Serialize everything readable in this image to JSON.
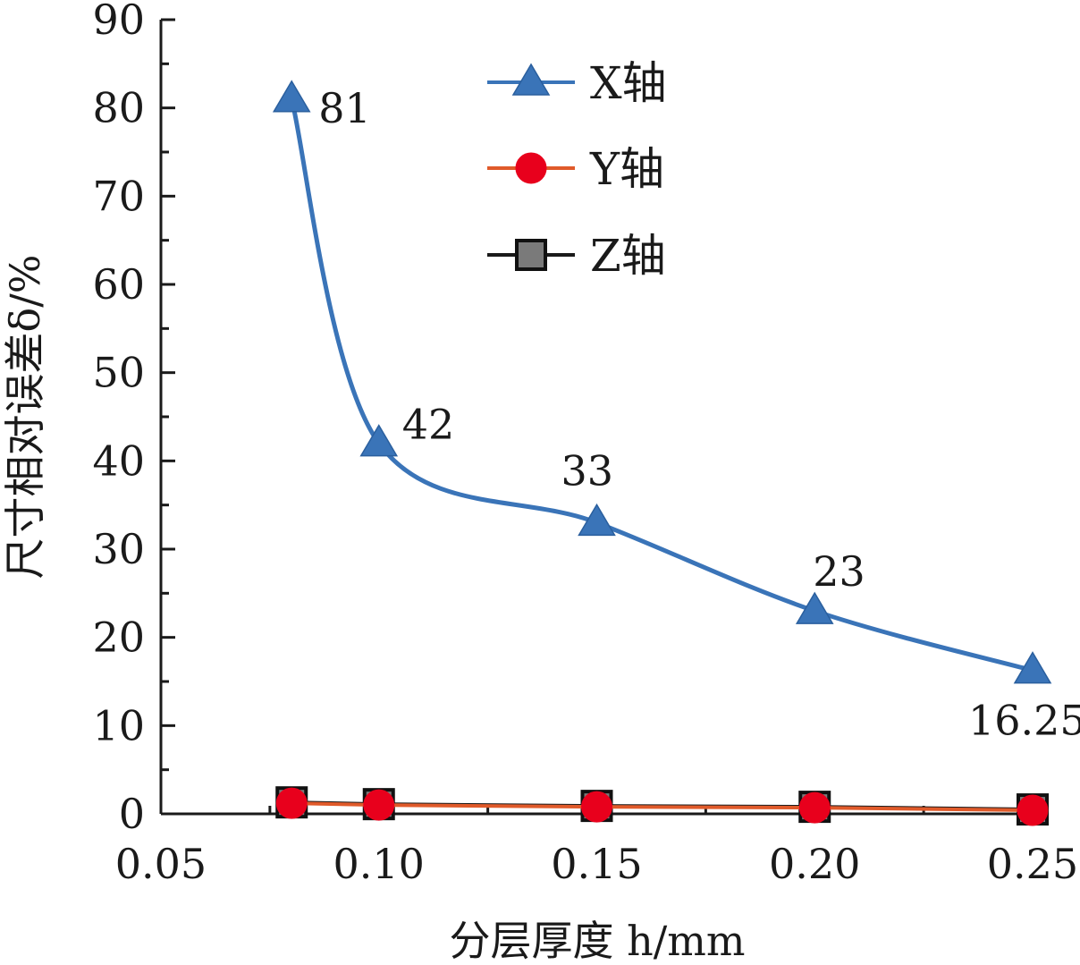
{
  "chart_data": {
    "type": "line",
    "xlabel": "分层厚度 h/mm",
    "ylabel": "尺寸相对误差δ/%",
    "xlim": [
      0.05,
      0.25
    ],
    "ylim": [
      0,
      90
    ],
    "xticks": [
      "0.05",
      "0.10",
      "0.15",
      "0.20",
      "0.25"
    ],
    "yticks": [
      "0",
      "10",
      "20",
      "30",
      "40",
      "50",
      "60",
      "70",
      "80",
      "90"
    ],
    "x": [
      0.08,
      0.1,
      0.15,
      0.2,
      0.25
    ],
    "series": [
      {
        "name": "X轴",
        "values": [
          81,
          42,
          33,
          23,
          16.25
        ],
        "labels": [
          "81",
          "42",
          "33",
          "23",
          "16.25"
        ],
        "color": "#3a74b8",
        "marker": "triangle",
        "smooth": true
      },
      {
        "name": "Y轴",
        "values": [
          1.2,
          1.0,
          0.8,
          0.7,
          0.4
        ],
        "color": "#e8001c",
        "marker": "circle",
        "smooth": false
      },
      {
        "name": "Z轴",
        "values": [
          1.3,
          1.1,
          0.9,
          0.8,
          0.5
        ],
        "color": "#1a1a1a",
        "marker": "square",
        "smooth": false
      }
    ],
    "legend_position": "top-center",
    "grid": false
  }
}
